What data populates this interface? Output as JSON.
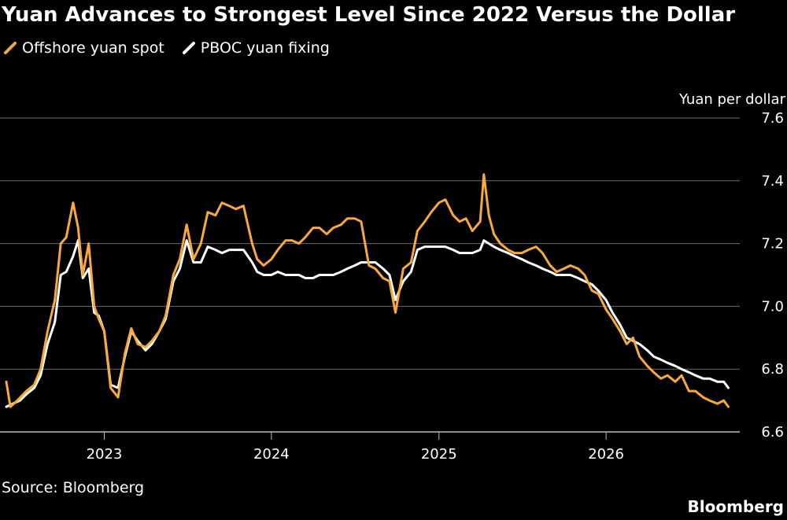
{
  "chart_data": {
    "type": "line",
    "title": "Yuan Advances to Strongest Level Since 2022 Versus the Dollar",
    "ylabel": "Yuan per dollar",
    "source": "Source: Bloomberg",
    "brand": "Bloomberg",
    "ylim": [
      6.6,
      7.6
    ],
    "yticks": [
      "7.6",
      "7.4",
      "7.2",
      "7.0",
      "6.8",
      "6.6"
    ],
    "yticks_num": [
      7.6,
      7.4,
      7.2,
      7.0,
      6.8,
      6.6
    ],
    "xlim": [
      "2022-06-01",
      "2026-10-20"
    ],
    "xticks": [
      {
        "label": "2023",
        "date": "2023-01-01"
      },
      {
        "label": "2024",
        "date": "2024-01-01"
      },
      {
        "label": "2025",
        "date": "2025-01-01"
      },
      {
        "label": "2026",
        "date": "2026-01-01"
      }
    ],
    "grid": true,
    "legend_position": "top-left",
    "series": [
      {
        "name": "Offshore yuan spot",
        "color": "#f7a93b",
        "points": [
          [
            "2022-06-01",
            6.76
          ],
          [
            "2022-06-10",
            6.68
          ],
          [
            "2022-06-25",
            6.7
          ],
          [
            "2022-07-15",
            6.73
          ],
          [
            "2022-08-01",
            6.75
          ],
          [
            "2022-08-15",
            6.8
          ],
          [
            "2022-08-30",
            6.92
          ],
          [
            "2022-09-15",
            7.02
          ],
          [
            "2022-09-28",
            7.2
          ],
          [
            "2022-10-10",
            7.22
          ],
          [
            "2022-10-25",
            7.33
          ],
          [
            "2022-11-05",
            7.25
          ],
          [
            "2022-11-15",
            7.1
          ],
          [
            "2022-11-28",
            7.2
          ],
          [
            "2022-12-10",
            7.0
          ],
          [
            "2022-12-20",
            6.96
          ],
          [
            "2023-01-01",
            6.92
          ],
          [
            "2023-01-15",
            6.74
          ],
          [
            "2023-01-31",
            6.71
          ],
          [
            "2023-02-15",
            6.85
          ],
          [
            "2023-03-01",
            6.93
          ],
          [
            "2023-03-15",
            6.88
          ],
          [
            "2023-04-01",
            6.87
          ],
          [
            "2023-04-15",
            6.89
          ],
          [
            "2023-05-01",
            6.92
          ],
          [
            "2023-05-15",
            6.97
          ],
          [
            "2023-06-01",
            7.1
          ],
          [
            "2023-06-15",
            7.15
          ],
          [
            "2023-06-30",
            7.26
          ],
          [
            "2023-07-15",
            7.15
          ],
          [
            "2023-07-31",
            7.2
          ],
          [
            "2023-08-15",
            7.3
          ],
          [
            "2023-09-01",
            7.29
          ],
          [
            "2023-09-15",
            7.33
          ],
          [
            "2023-10-01",
            7.32
          ],
          [
            "2023-10-15",
            7.31
          ],
          [
            "2023-11-01",
            7.32
          ],
          [
            "2023-11-20",
            7.2
          ],
          [
            "2023-12-01",
            7.15
          ],
          [
            "2023-12-15",
            7.13
          ],
          [
            "2024-01-01",
            7.15
          ],
          [
            "2024-01-15",
            7.18
          ],
          [
            "2024-02-01",
            7.21
          ],
          [
            "2024-02-15",
            7.21
          ],
          [
            "2024-03-01",
            7.2
          ],
          [
            "2024-03-15",
            7.22
          ],
          [
            "2024-04-01",
            7.25
          ],
          [
            "2024-04-15",
            7.25
          ],
          [
            "2024-05-01",
            7.23
          ],
          [
            "2024-05-15",
            7.25
          ],
          [
            "2024-06-01",
            7.26
          ],
          [
            "2024-06-15",
            7.28
          ],
          [
            "2024-07-01",
            7.28
          ],
          [
            "2024-07-15",
            7.27
          ],
          [
            "2024-08-01",
            7.13
          ],
          [
            "2024-08-15",
            7.12
          ],
          [
            "2024-09-01",
            7.09
          ],
          [
            "2024-09-15",
            7.08
          ],
          [
            "2024-09-28",
            6.98
          ],
          [
            "2024-10-15",
            7.12
          ],
          [
            "2024-11-01",
            7.14
          ],
          [
            "2024-11-15",
            7.24
          ],
          [
            "2024-12-01",
            7.27
          ],
          [
            "2024-12-15",
            7.3
          ],
          [
            "2025-01-01",
            7.33
          ],
          [
            "2025-01-15",
            7.34
          ],
          [
            "2025-02-01",
            7.29
          ],
          [
            "2025-02-15",
            7.27
          ],
          [
            "2025-03-01",
            7.28
          ],
          [
            "2025-03-15",
            7.24
          ],
          [
            "2025-04-01",
            7.27
          ],
          [
            "2025-04-09",
            7.42
          ],
          [
            "2025-04-20",
            7.29
          ],
          [
            "2025-05-01",
            7.23
          ],
          [
            "2025-05-15",
            7.2
          ],
          [
            "2025-06-01",
            7.18
          ],
          [
            "2025-06-15",
            7.17
          ],
          [
            "2025-07-01",
            7.17
          ],
          [
            "2025-07-15",
            7.18
          ],
          [
            "2025-08-01",
            7.19
          ],
          [
            "2025-08-15",
            7.17
          ],
          [
            "2025-09-01",
            7.13
          ],
          [
            "2025-09-15",
            7.11
          ],
          [
            "2025-10-01",
            7.12
          ],
          [
            "2025-10-15",
            7.13
          ],
          [
            "2025-11-01",
            7.12
          ],
          [
            "2025-11-15",
            7.1
          ],
          [
            "2025-12-01",
            7.05
          ],
          [
            "2025-12-15",
            7.04
          ],
          [
            "2026-01-01",
            6.99
          ],
          [
            "2026-01-15",
            6.96
          ],
          [
            "2026-02-01",
            6.92
          ],
          [
            "2026-02-15",
            6.88
          ],
          [
            "2026-03-01",
            6.9
          ],
          [
            "2026-03-15",
            6.84
          ],
          [
            "2026-04-01",
            6.81
          ],
          [
            "2026-04-15",
            6.79
          ],
          [
            "2026-05-01",
            6.77
          ],
          [
            "2026-05-15",
            6.78
          ],
          [
            "2026-06-01",
            6.76
          ],
          [
            "2026-06-15",
            6.78
          ],
          [
            "2026-07-01",
            6.73
          ],
          [
            "2026-07-15",
            6.73
          ],
          [
            "2026-08-01",
            6.71
          ],
          [
            "2026-08-15",
            6.7
          ],
          [
            "2026-09-01",
            6.69
          ],
          [
            "2026-09-15",
            6.7
          ],
          [
            "2026-09-25",
            6.68
          ]
        ]
      },
      {
        "name": "PBOC yuan fixing",
        "color": "#ffffff",
        "points": [
          [
            "2022-06-01",
            6.68
          ],
          [
            "2022-06-15",
            6.69
          ],
          [
            "2022-07-01",
            6.7
          ],
          [
            "2022-07-15",
            6.72
          ],
          [
            "2022-08-01",
            6.74
          ],
          [
            "2022-08-15",
            6.78
          ],
          [
            "2022-08-30",
            6.88
          ],
          [
            "2022-09-15",
            6.95
          ],
          [
            "2022-09-28",
            7.1
          ],
          [
            "2022-10-10",
            7.11
          ],
          [
            "2022-10-25",
            7.16
          ],
          [
            "2022-11-05",
            7.21
          ],
          [
            "2022-11-15",
            7.09
          ],
          [
            "2022-11-28",
            7.12
          ],
          [
            "2022-12-10",
            6.98
          ],
          [
            "2022-12-20",
            6.97
          ],
          [
            "2023-01-01",
            6.92
          ],
          [
            "2023-01-15",
            6.75
          ],
          [
            "2023-01-31",
            6.74
          ],
          [
            "2023-02-15",
            6.84
          ],
          [
            "2023-03-01",
            6.92
          ],
          [
            "2023-03-15",
            6.89
          ],
          [
            "2023-04-01",
            6.86
          ],
          [
            "2023-04-15",
            6.88
          ],
          [
            "2023-05-01",
            6.92
          ],
          [
            "2023-05-15",
            6.96
          ],
          [
            "2023-06-01",
            7.08
          ],
          [
            "2023-06-15",
            7.12
          ],
          [
            "2023-06-30",
            7.21
          ],
          [
            "2023-07-15",
            7.14
          ],
          [
            "2023-07-31",
            7.14
          ],
          [
            "2023-08-15",
            7.19
          ],
          [
            "2023-09-01",
            7.18
          ],
          [
            "2023-09-15",
            7.17
          ],
          [
            "2023-10-01",
            7.18
          ],
          [
            "2023-10-15",
            7.18
          ],
          [
            "2023-11-01",
            7.18
          ],
          [
            "2023-11-20",
            7.14
          ],
          [
            "2023-12-01",
            7.11
          ],
          [
            "2023-12-15",
            7.1
          ],
          [
            "2024-01-01",
            7.1
          ],
          [
            "2024-01-15",
            7.11
          ],
          [
            "2024-02-01",
            7.1
          ],
          [
            "2024-02-15",
            7.1
          ],
          [
            "2024-03-01",
            7.1
          ],
          [
            "2024-03-15",
            7.09
          ],
          [
            "2024-04-01",
            7.09
          ],
          [
            "2024-04-15",
            7.1
          ],
          [
            "2024-05-01",
            7.1
          ],
          [
            "2024-05-15",
            7.1
          ],
          [
            "2024-06-01",
            7.11
          ],
          [
            "2024-06-15",
            7.12
          ],
          [
            "2024-07-01",
            7.13
          ],
          [
            "2024-07-15",
            7.14
          ],
          [
            "2024-08-01",
            7.14
          ],
          [
            "2024-08-15",
            7.14
          ],
          [
            "2024-09-01",
            7.12
          ],
          [
            "2024-09-15",
            7.1
          ],
          [
            "2024-09-28",
            7.02
          ],
          [
            "2024-10-15",
            7.08
          ],
          [
            "2024-11-01",
            7.11
          ],
          [
            "2024-11-15",
            7.18
          ],
          [
            "2024-12-01",
            7.19
          ],
          [
            "2024-12-15",
            7.19
          ],
          [
            "2025-01-01",
            7.19
          ],
          [
            "2025-01-15",
            7.19
          ],
          [
            "2025-02-01",
            7.18
          ],
          [
            "2025-02-15",
            7.17
          ],
          [
            "2025-03-01",
            7.17
          ],
          [
            "2025-03-15",
            7.17
          ],
          [
            "2025-04-01",
            7.18
          ],
          [
            "2025-04-09",
            7.21
          ],
          [
            "2025-04-20",
            7.2
          ],
          [
            "2025-05-01",
            7.19
          ],
          [
            "2025-05-15",
            7.18
          ],
          [
            "2025-06-01",
            7.17
          ],
          [
            "2025-06-15",
            7.16
          ],
          [
            "2025-07-01",
            7.15
          ],
          [
            "2025-07-15",
            7.14
          ],
          [
            "2025-08-01",
            7.13
          ],
          [
            "2025-08-15",
            7.12
          ],
          [
            "2025-09-01",
            7.11
          ],
          [
            "2025-09-15",
            7.1
          ],
          [
            "2025-10-01",
            7.1
          ],
          [
            "2025-10-15",
            7.1
          ],
          [
            "2025-11-01",
            7.09
          ],
          [
            "2025-11-15",
            7.08
          ],
          [
            "2025-12-01",
            7.07
          ],
          [
            "2025-12-15",
            7.05
          ],
          [
            "2026-01-01",
            7.02
          ],
          [
            "2026-01-15",
            6.98
          ],
          [
            "2026-02-01",
            6.94
          ],
          [
            "2026-02-15",
            6.9
          ],
          [
            "2026-03-01",
            6.89
          ],
          [
            "2026-03-15",
            6.88
          ],
          [
            "2026-04-01",
            6.86
          ],
          [
            "2026-04-15",
            6.84
          ],
          [
            "2026-05-01",
            6.83
          ],
          [
            "2026-05-15",
            6.82
          ],
          [
            "2026-06-01",
            6.81
          ],
          [
            "2026-06-15",
            6.8
          ],
          [
            "2026-07-01",
            6.79
          ],
          [
            "2026-07-15",
            6.78
          ],
          [
            "2026-08-01",
            6.77
          ],
          [
            "2026-08-15",
            6.77
          ],
          [
            "2026-09-01",
            6.76
          ],
          [
            "2026-09-15",
            6.76
          ],
          [
            "2026-09-25",
            6.74
          ]
        ]
      }
    ]
  }
}
